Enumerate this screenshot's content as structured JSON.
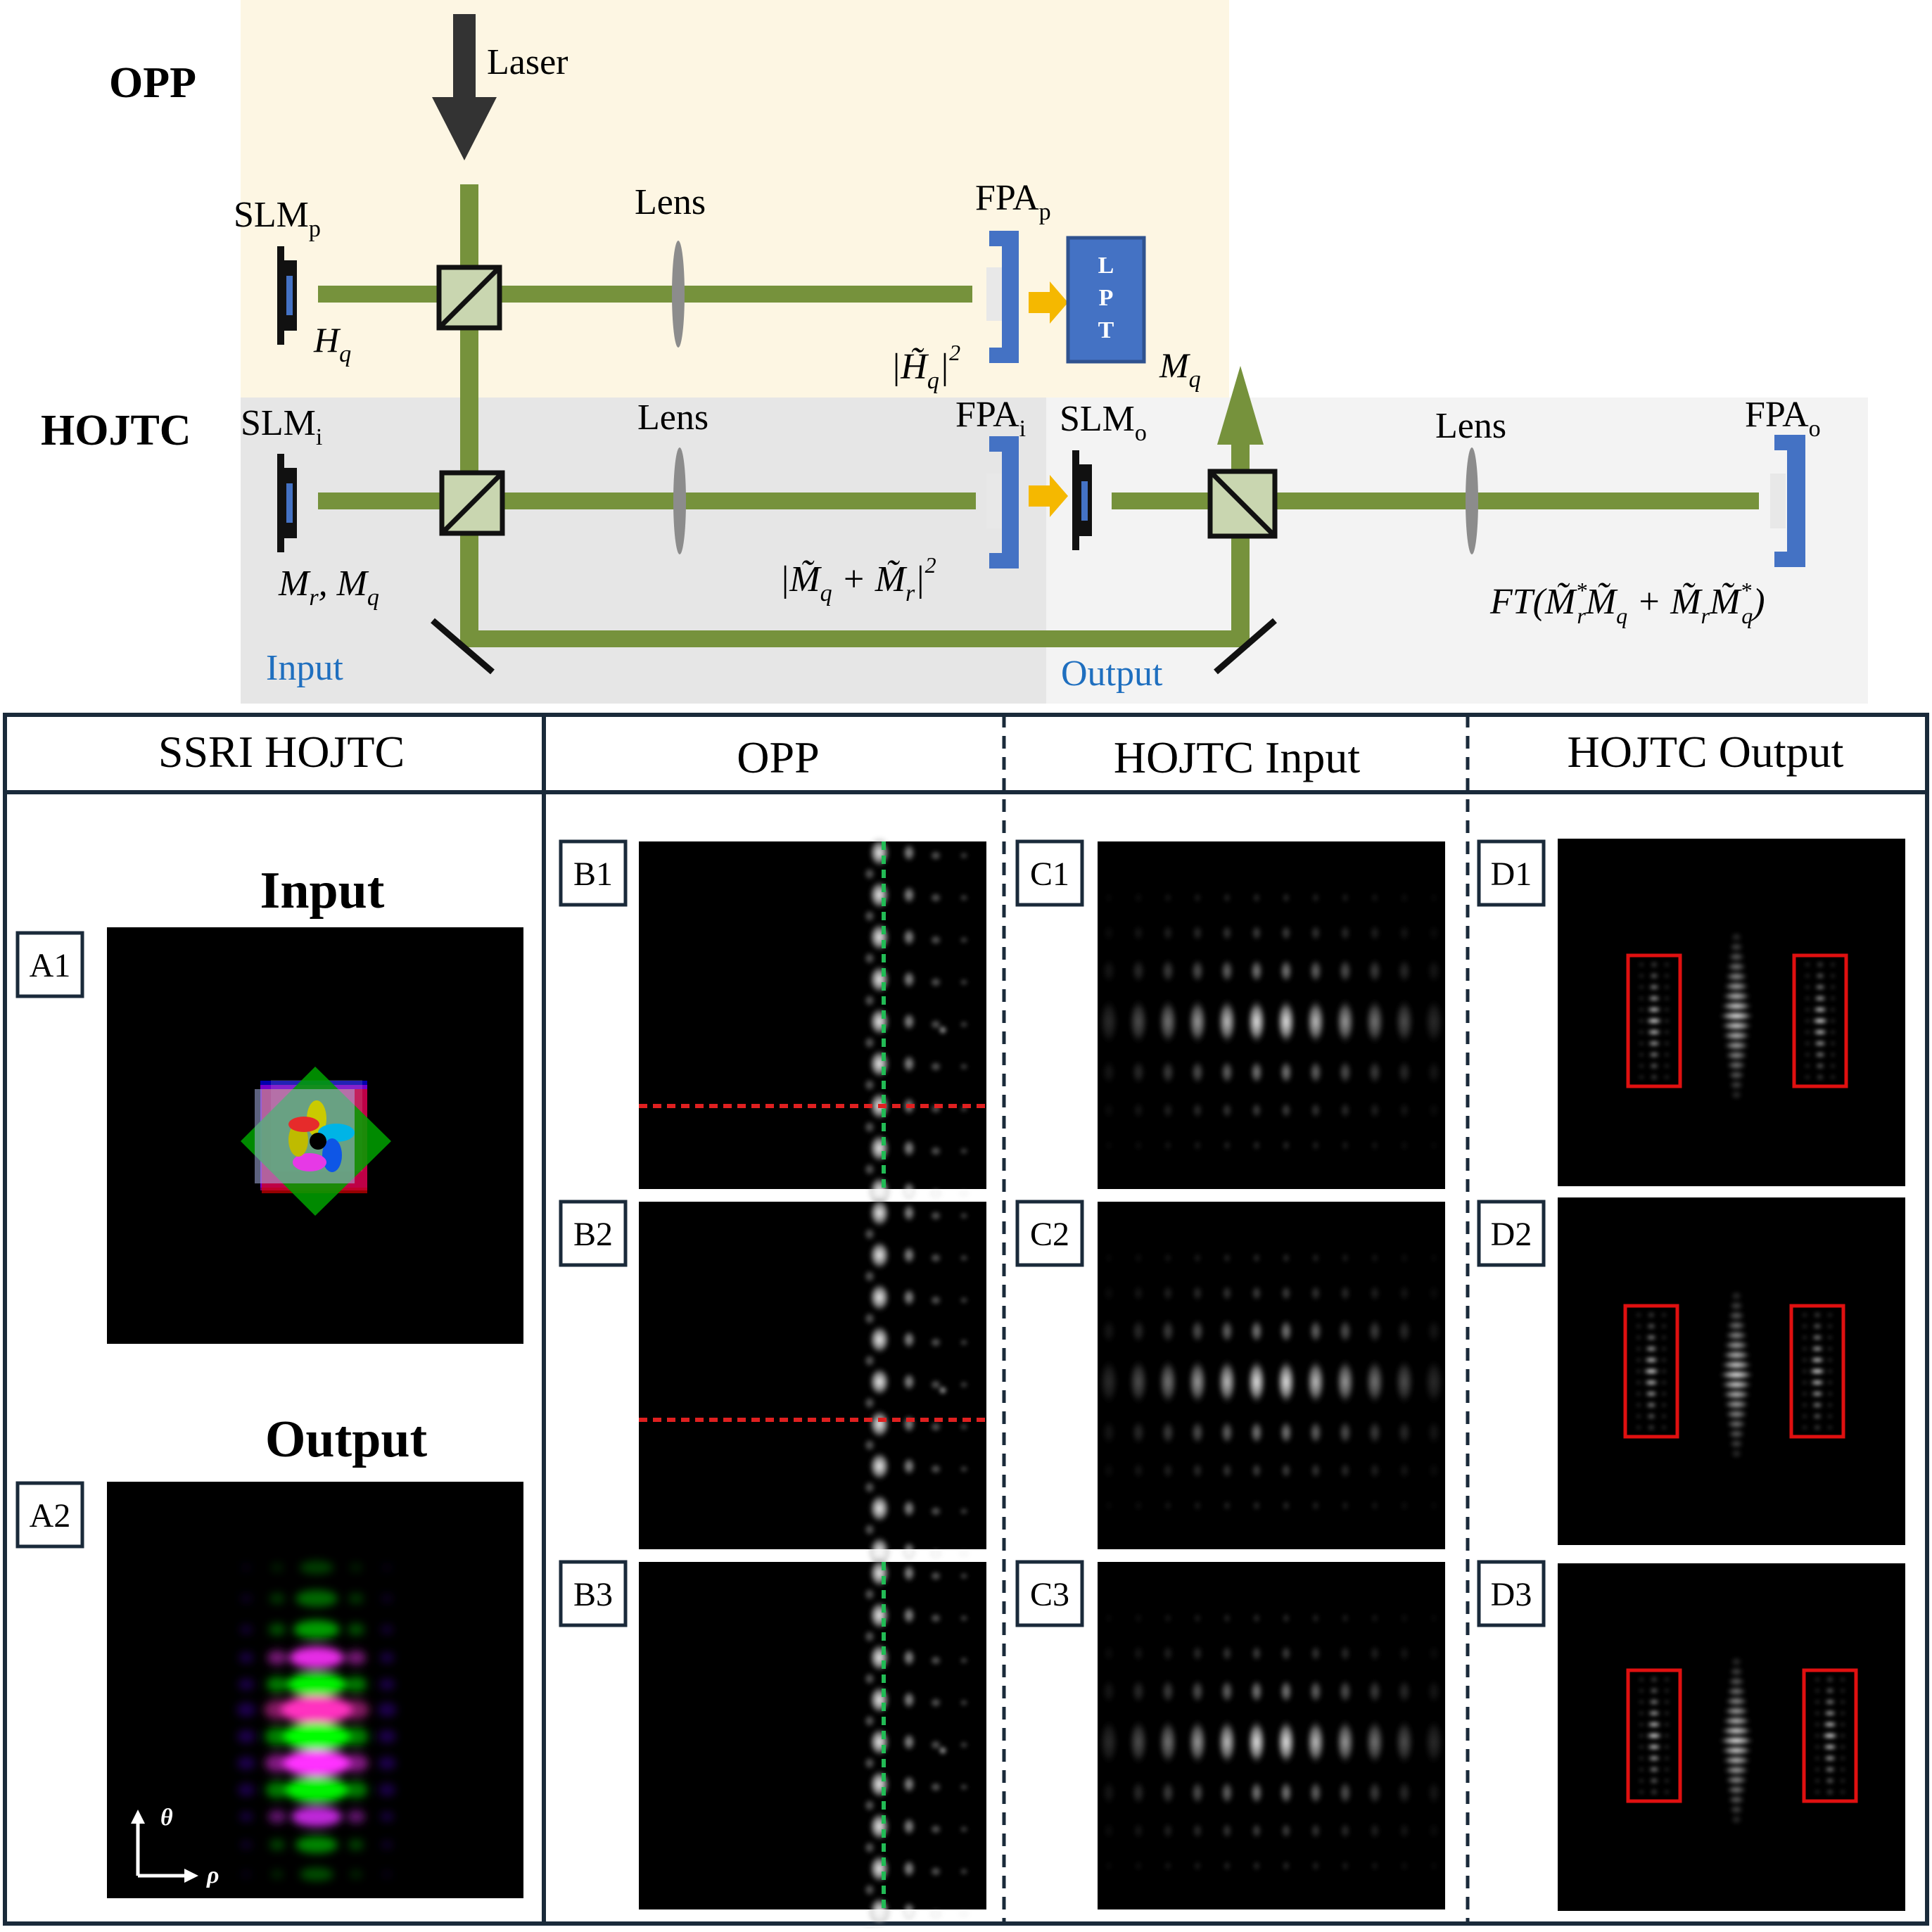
{
  "setup": {
    "opp_label": "OPP",
    "hojtc_label": "HOJTC",
    "laser_label": "Laser",
    "lens_label": "Lens",
    "slm_p": {
      "base": "SLM",
      "sub": "p"
    },
    "slm_i": {
      "base": "SLM",
      "sub": "i"
    },
    "slm_o": {
      "base": "SLM",
      "sub": "o"
    },
    "fpa_p": {
      "base": "FPA",
      "sub": "p"
    },
    "fpa_i": {
      "base": "FPA",
      "sub": "i"
    },
    "fpa_o": {
      "base": "FPA",
      "sub": "o"
    },
    "lpt_letters": [
      "L",
      "P",
      "T"
    ],
    "h_q": "H",
    "h_q_sub": "q",
    "h_q_power": "|H̃",
    "h_q_power_sub": "q",
    "h_q_power_end": "|",
    "h_q_power_exp": "2",
    "m_q": "M",
    "m_q_sub": "q",
    "input_formula": "M",
    "input_formula_sub_r": "r",
    "input_formula_sep": ", M",
    "input_formula_sub_q": "q",
    "joint_power": "|M̃",
    "joint_power_sub_q": "q",
    "joint_power_plus": " + M̃",
    "joint_power_sub_r": "r",
    "joint_power_end": "|",
    "joint_power_exp": "2",
    "output_formula_start": "FT(M̃",
    "output_formula_sup1": "*",
    "output_formula_sub1": "r",
    "output_formula_m2": "M̃",
    "output_formula_sub2": "q",
    "output_formula_plus": " + M̃",
    "output_formula_sub3": "r",
    "output_formula_m4": "M̃",
    "output_formula_sup4": "*",
    "output_formula_sub4": "q",
    "output_formula_end": ")",
    "input_region_label": "Input",
    "output_region_label": "Output",
    "colors": {
      "opp_bg": "#fdf6e3",
      "hojtc_input_bg": "#e6e6e6",
      "hojtc_output_bg": "#f3f3f3",
      "beam": "#76923c",
      "device_blue": "#4472c4",
      "arrow_yellow": "#f5b800",
      "label_blue": "#1f6fbf",
      "lens_gray": "#8c8c8c"
    }
  },
  "table": {
    "headers": [
      "SSRI HOJTC",
      "OPP",
      "HOJTC Input",
      "HOJTC Output"
    ],
    "ssri_input_title": "Input",
    "ssri_output_title": "Output",
    "axis_theta": "θ",
    "axis_rho": "ρ",
    "panel_labels": {
      "a": [
        "A1",
        "A2"
      ],
      "b": [
        "B1",
        "B2",
        "B3"
      ],
      "c": [
        "C1",
        "C2",
        "C3"
      ],
      "d": [
        "D1",
        "D2",
        "D3"
      ]
    },
    "colors": {
      "border": "#1a2a3a",
      "red_box": "#e01010",
      "red_dash": "#e02020",
      "green_dash": "#22bb55"
    }
  }
}
